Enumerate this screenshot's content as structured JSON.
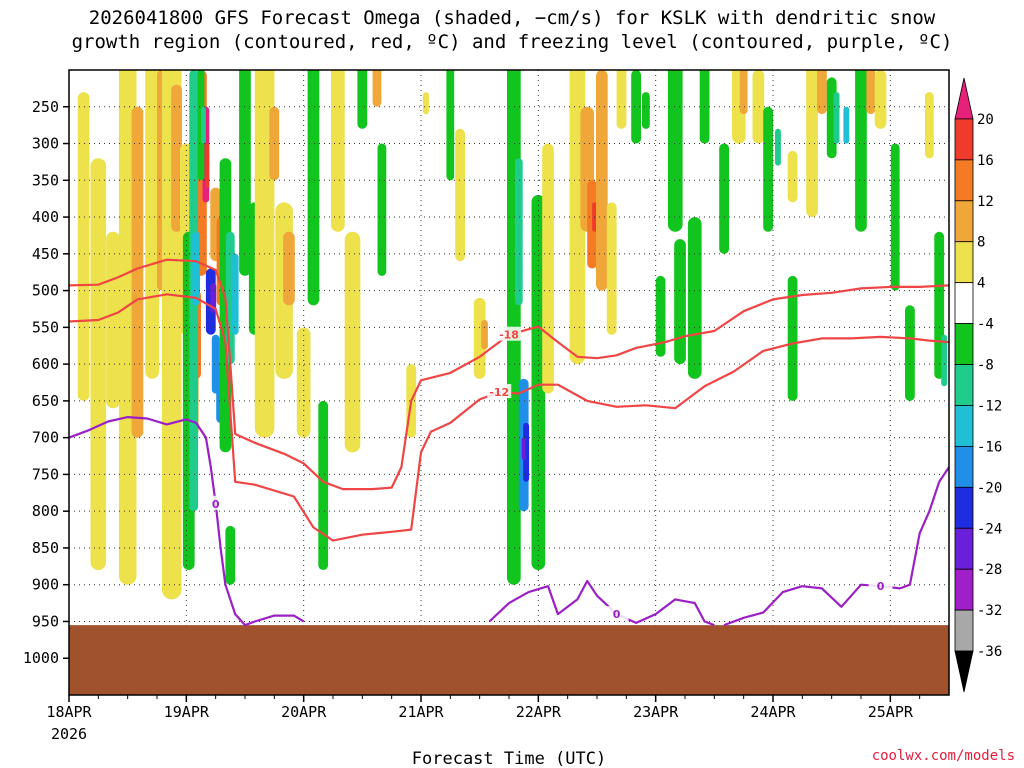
{
  "chart_data": {
    "type": "heatmap",
    "title": "2026041800 GFS Forecast Omega (shaded, −cm/s) for KSLK with dendritic snow",
    "title_line2": "growth region (contoured, red, ºC) and freezing level (contoured, purple, ºC)",
    "xlabel": "Forecast Time (UTC)",
    "ylabel": "",
    "x_tick_labels": [
      "18APR",
      "19APR",
      "20APR",
      "21APR",
      "22APR",
      "23APR",
      "24APR",
      "25APR"
    ],
    "x_tick_year": "2026",
    "x_range_hours": [
      0,
      180
    ],
    "y_axis": "pressure (hPa), inverted",
    "y_ticks": [
      250,
      300,
      350,
      400,
      450,
      500,
      550,
      600,
      650,
      700,
      750,
      800,
      850,
      900,
      950,
      1000
    ],
    "y_range": [
      200,
      1050
    ],
    "surface_pressure_hPa": 955,
    "colorbar": {
      "label_values": [
        20,
        16,
        12,
        8,
        4,
        -4,
        -8,
        -12,
        -16,
        -20,
        -24,
        -28,
        -32,
        -36
      ],
      "segments": [
        {
          "range": ">20",
          "color": "#e6217a"
        },
        {
          "range": "16 to 20",
          "color": "#ef3b2c"
        },
        {
          "range": "12 to 16",
          "color": "#f47a24"
        },
        {
          "range": "8 to 12",
          "color": "#f0a73a"
        },
        {
          "range": "4 to 8",
          "color": "#ede14c"
        },
        {
          "range": "-4 to 4",
          "color": "#ffffff"
        },
        {
          "range": "-8 to -4",
          "color": "#12c41e"
        },
        {
          "range": "-12 to -8",
          "color": "#1fcc8c"
        },
        {
          "range": "-16 to -12",
          "color": "#1fbfd6"
        },
        {
          "range": "-20 to -16",
          "color": "#1f8fe8"
        },
        {
          "range": "-24 to -20",
          "color": "#1f2de0"
        },
        {
          "range": "-28 to -24",
          "color": "#6a1fd8"
        },
        {
          "range": "-32 to -28",
          "color": "#a01fc8"
        },
        {
          "range": "-36 to -32",
          "color": "#a8a8a8"
        },
        {
          "range": "<-36",
          "color": "#000000"
        }
      ]
    },
    "contours": [
      {
        "name": "-18C isotherm",
        "label": "-18",
        "color": "#ef4545",
        "points": [
          [
            0,
            493
          ],
          [
            6,
            492
          ],
          [
            10,
            482
          ],
          [
            14,
            470
          ],
          [
            20,
            458
          ],
          [
            26,
            460
          ],
          [
            30,
            472
          ],
          [
            32,
            510
          ],
          [
            33,
            600
          ],
          [
            34,
            695
          ],
          [
            38,
            707
          ],
          [
            44,
            722
          ],
          [
            48,
            735
          ],
          [
            52,
            760
          ],
          [
            56,
            770
          ],
          [
            62,
            770
          ],
          [
            66,
            768
          ],
          [
            68,
            740
          ],
          [
            70,
            650
          ],
          [
            72,
            622
          ],
          [
            78,
            612
          ],
          [
            84,
            590
          ],
          [
            90,
            560
          ],
          [
            96,
            549
          ],
          [
            100,
            570
          ],
          [
            104,
            590
          ],
          [
            108,
            592
          ],
          [
            112,
            588
          ],
          [
            116,
            578
          ],
          [
            122,
            570
          ],
          [
            126,
            562
          ],
          [
            132,
            555
          ],
          [
            138,
            528
          ],
          [
            144,
            512
          ],
          [
            150,
            506
          ],
          [
            156,
            503
          ],
          [
            162,
            497
          ],
          [
            168,
            495
          ],
          [
            174,
            495
          ],
          [
            180,
            493
          ]
        ]
      },
      {
        "name": "-12C isotherm",
        "label": "-12",
        "color": "#ef4545",
        "points": [
          [
            0,
            542
          ],
          [
            6,
            540
          ],
          [
            10,
            530
          ],
          [
            14,
            512
          ],
          [
            20,
            505
          ],
          [
            26,
            510
          ],
          [
            30,
            525
          ],
          [
            32,
            570
          ],
          [
            34,
            760
          ],
          [
            38,
            764
          ],
          [
            46,
            780
          ],
          [
            50,
            822
          ],
          [
            54,
            840
          ],
          [
            60,
            832
          ],
          [
            66,
            828
          ],
          [
            70,
            825
          ],
          [
            72,
            720
          ],
          [
            74,
            692
          ],
          [
            78,
            680
          ],
          [
            84,
            648
          ],
          [
            88,
            638
          ],
          [
            92,
            640
          ],
          [
            96,
            628
          ],
          [
            100,
            628
          ],
          [
            106,
            650
          ],
          [
            112,
            658
          ],
          [
            118,
            656
          ],
          [
            124,
            660
          ],
          [
            130,
            630
          ],
          [
            136,
            610
          ],
          [
            142,
            582
          ],
          [
            148,
            572
          ],
          [
            154,
            565
          ],
          [
            160,
            565
          ],
          [
            166,
            563
          ],
          [
            172,
            565
          ],
          [
            176,
            568
          ],
          [
            180,
            570
          ]
        ]
      },
      {
        "name": "0C freezing level",
        "label": "0",
        "color": "#9b1fc6",
        "points": [
          [
            0,
            700
          ],
          [
            4,
            690
          ],
          [
            8,
            678
          ],
          [
            12,
            672
          ],
          [
            16,
            674
          ],
          [
            20,
            682
          ],
          [
            24,
            675
          ],
          [
            26,
            680
          ],
          [
            28,
            700
          ],
          [
            29,
            740
          ],
          [
            30,
            790
          ],
          [
            31,
            850
          ],
          [
            32,
            900
          ],
          [
            34,
            940
          ],
          [
            36,
            955
          ],
          [
            38,
            950
          ],
          [
            42,
            942
          ],
          [
            46,
            942
          ],
          [
            48,
            950
          ]
        ]
      },
      {
        "name": "0C freezing level (2)",
        "label": "0",
        "color": "#9b1fc6",
        "points": [
          [
            86,
            950
          ],
          [
            90,
            925
          ],
          [
            94,
            910
          ],
          [
            98,
            902
          ],
          [
            100,
            940
          ],
          [
            104,
            920
          ],
          [
            106,
            895
          ],
          [
            108,
            915
          ],
          [
            112,
            940
          ],
          [
            116,
            952
          ],
          [
            120,
            940
          ],
          [
            124,
            920
          ],
          [
            128,
            925
          ],
          [
            130,
            950
          ],
          [
            132,
            955
          ]
        ]
      },
      {
        "name": "0C freezing level (3)",
        "label": "0",
        "color": "#9b1fc6",
        "points": [
          [
            134,
            955
          ],
          [
            138,
            945
          ],
          [
            142,
            938
          ],
          [
            146,
            910
          ],
          [
            150,
            902
          ],
          [
            154,
            905
          ],
          [
            158,
            930
          ],
          [
            162,
            900
          ],
          [
            166,
            902
          ],
          [
            170,
            905
          ],
          [
            172,
            900
          ],
          [
            174,
            830
          ],
          [
            176,
            800
          ],
          [
            178,
            760
          ],
          [
            180,
            740
          ]
        ]
      }
    ]
  },
  "credit": "coolwx.com/models"
}
